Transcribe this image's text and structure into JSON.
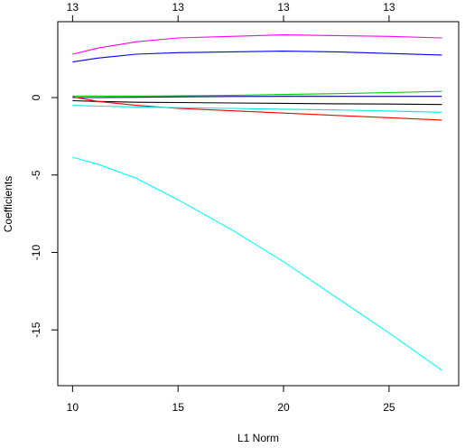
{
  "chart_data": {
    "type": "line",
    "title": "",
    "xlabel": "L1 Norm",
    "ylabel": "Coefficients",
    "xlim": [
      9.3,
      28.3
    ],
    "ylim": [
      -18.6,
      4.9
    ],
    "grid": false,
    "legend": "none",
    "x_ticks": [
      10,
      15,
      20,
      25
    ],
    "y_ticks": [
      0,
      -5,
      -10,
      -15
    ],
    "top_axis": {
      "positions": [
        10,
        15,
        20,
        25
      ],
      "labels": [
        "13",
        "13",
        "13",
        "13"
      ]
    },
    "x": [
      10,
      11.2,
      13,
      15,
      17.5,
      20,
      22.5,
      25,
      27.5
    ],
    "series": [
      {
        "color": "#ff00ff",
        "values": [
          2.8,
          3.2,
          3.6,
          3.85,
          3.95,
          4.05,
          4.0,
          3.95,
          3.85
        ]
      },
      {
        "color": "#0000ff",
        "values": [
          2.3,
          2.55,
          2.8,
          2.9,
          2.95,
          3.0,
          2.95,
          2.85,
          2.75
        ]
      },
      {
        "color": "#00cd00",
        "values": [
          0.1,
          0.1,
          0.1,
          0.12,
          0.15,
          0.2,
          0.25,
          0.32,
          0.4
        ]
      },
      {
        "color": "#00008b",
        "values": [
          0.0,
          0.0,
          0.02,
          0.05,
          0.07,
          0.08,
          0.08,
          0.08,
          0.08
        ]
      },
      {
        "color": "#000000",
        "values": [
          -0.2,
          -0.25,
          -0.3,
          -0.32,
          -0.35,
          -0.37,
          -0.4,
          -0.42,
          -0.45
        ]
      },
      {
        "color": "#ff0000",
        "values": [
          0.05,
          -0.25,
          -0.5,
          -0.7,
          -0.85,
          -1.0,
          -1.15,
          -1.3,
          -1.45
        ]
      },
      {
        "color": "#00e5e5",
        "values": [
          -0.5,
          -0.55,
          -0.6,
          -0.65,
          -0.7,
          -0.75,
          -0.8,
          -0.87,
          -0.95
        ]
      },
      {
        "color": "#00ffff",
        "values": [
          -3.85,
          -4.3,
          -5.2,
          -6.6,
          -8.5,
          -10.6,
          -12.9,
          -15.2,
          -17.6
        ]
      }
    ]
  }
}
